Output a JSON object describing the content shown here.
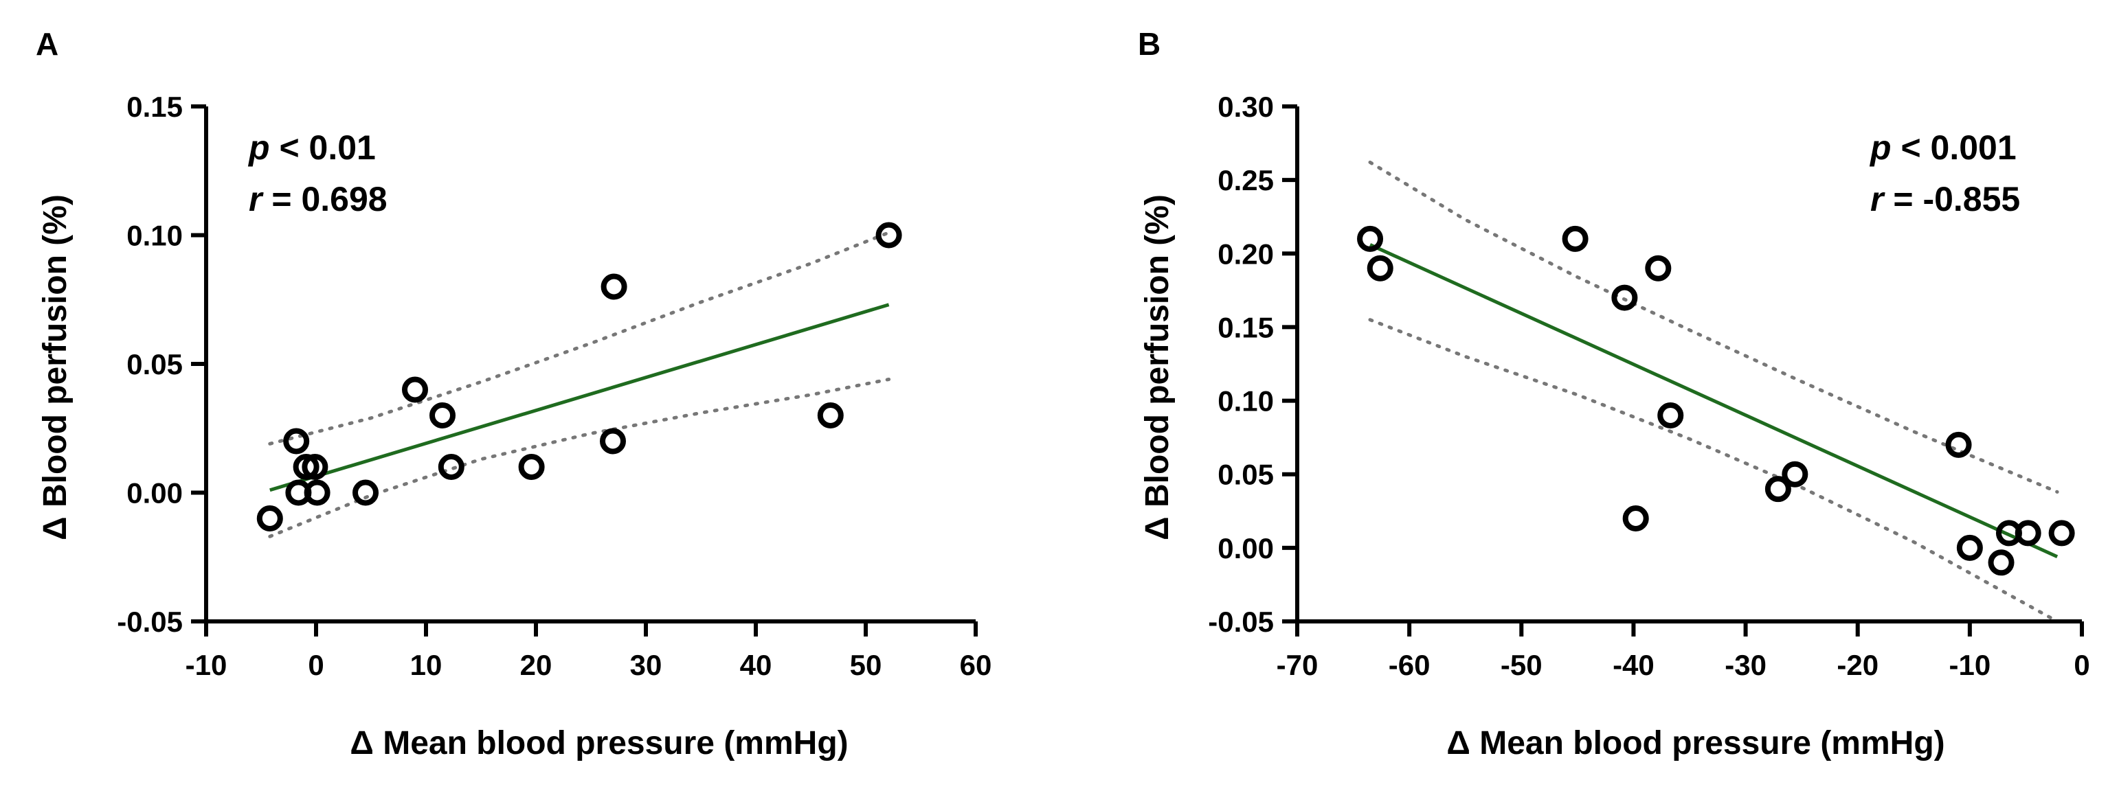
{
  "chart_data": [
    {
      "type": "scatter",
      "panel": "A",
      "xlabel": "Δ Mean blood pressure (mmHg)",
      "ylabel": "Δ Blood perfusion (%)",
      "xlim": [
        -10,
        60
      ],
      "ylim": [
        -0.05,
        0.15
      ],
      "xticks": [
        -10,
        0,
        10,
        20,
        30,
        40,
        50,
        60
      ],
      "yticks": [
        -0.05,
        0.0,
        0.05,
        0.1,
        0.15
      ],
      "xtick_labels": [
        "-10",
        "0",
        "10",
        "20",
        "30",
        "40",
        "50",
        "60"
      ],
      "ytick_labels": [
        "-0.05",
        "0.00",
        "0.05",
        "0.10",
        "0.15"
      ],
      "stats": {
        "p_symbol": "p",
        "p_text": " < 0.01",
        "r_symbol": "r",
        "r_text": " = 0.698"
      },
      "points": [
        {
          "x": -4.2,
          "y": -0.01
        },
        {
          "x": -1.8,
          "y": 0.02
        },
        {
          "x": -1.6,
          "y": 0.0
        },
        {
          "x": -0.9,
          "y": 0.01
        },
        {
          "x": -0.1,
          "y": 0.01
        },
        {
          "x": 0.1,
          "y": 0.0
        },
        {
          "x": 4.5,
          "y": 0.0
        },
        {
          "x": 9.0,
          "y": 0.04
        },
        {
          "x": 11.5,
          "y": 0.03
        },
        {
          "x": 12.3,
          "y": 0.01
        },
        {
          "x": 19.6,
          "y": 0.01
        },
        {
          "x": 27.1,
          "y": 0.08
        },
        {
          "x": 27.0,
          "y": 0.02
        },
        {
          "x": 46.8,
          "y": 0.03
        },
        {
          "x": 52.1,
          "y": 0.1
        }
      ],
      "fit_line": [
        {
          "x": -4.2,
          "y": 0.001
        },
        {
          "x": 52.1,
          "y": 0.073
        }
      ],
      "ci_upper": [
        {
          "x": -4.2,
          "y": 0.019
        },
        {
          "x": 5,
          "y": 0.029
        },
        {
          "x": 15,
          "y": 0.043
        },
        {
          "x": 25,
          "y": 0.058
        },
        {
          "x": 35,
          "y": 0.074
        },
        {
          "x": 45,
          "y": 0.089
        },
        {
          "x": 52.1,
          "y": 0.101
        }
      ],
      "ci_lower": [
        {
          "x": -4.2,
          "y": -0.017
        },
        {
          "x": 5,
          "y": -0.001
        },
        {
          "x": 15,
          "y": 0.013
        },
        {
          "x": 25,
          "y": 0.023
        },
        {
          "x": 35,
          "y": 0.031
        },
        {
          "x": 45,
          "y": 0.038
        },
        {
          "x": 52.1,
          "y": 0.044
        }
      ]
    },
    {
      "type": "scatter",
      "panel": "B",
      "xlabel": "Δ Mean blood pressure (mmHg)",
      "ylabel": "Δ Blood perfusion (%)",
      "xlim": [
        -70,
        0
      ],
      "ylim": [
        -0.05,
        0.3
      ],
      "xticks": [
        -70,
        -60,
        -50,
        -40,
        -30,
        -20,
        -10,
        0
      ],
      "yticks": [
        -0.05,
        0.0,
        0.05,
        0.1,
        0.15,
        0.2,
        0.25,
        0.3
      ],
      "xtick_labels": [
        "-70",
        "-60",
        "-50",
        "-40",
        "-30",
        "-20",
        "-10",
        "0"
      ],
      "ytick_labels": [
        "-0.05",
        "0.00",
        "0.05",
        "0.10",
        "0.15",
        "0.20",
        "0.25",
        "0.30"
      ],
      "stats": {
        "p_symbol": "p",
        "p_text": " < 0.001",
        "r_symbol": "r",
        "r_text": " = -0.855"
      },
      "points": [
        {
          "x": -63.5,
          "y": 0.21
        },
        {
          "x": -62.6,
          "y": 0.19
        },
        {
          "x": -45.2,
          "y": 0.21
        },
        {
          "x": -40.8,
          "y": 0.17
        },
        {
          "x": -37.8,
          "y": 0.19
        },
        {
          "x": -36.7,
          "y": 0.09
        },
        {
          "x": -39.8,
          "y": 0.02
        },
        {
          "x": -27.1,
          "y": 0.04
        },
        {
          "x": -25.6,
          "y": 0.05
        },
        {
          "x": -11.0,
          "y": 0.07
        },
        {
          "x": -10.0,
          "y": 0.0
        },
        {
          "x": -7.2,
          "y": -0.01
        },
        {
          "x": -6.5,
          "y": 0.01
        },
        {
          "x": -4.8,
          "y": 0.01
        },
        {
          "x": -1.8,
          "y": 0.01
        }
      ],
      "fit_line": [
        {
          "x": -63.5,
          "y": 0.206
        },
        {
          "x": -2.2,
          "y": -0.006
        }
      ],
      "ci_upper": [
        {
          "x": -63.5,
          "y": 0.262
        },
        {
          "x": -55,
          "y": 0.223
        },
        {
          "x": -45,
          "y": 0.184
        },
        {
          "x": -35,
          "y": 0.148
        },
        {
          "x": -25,
          "y": 0.113
        },
        {
          "x": -15,
          "y": 0.079
        },
        {
          "x": -2.2,
          "y": 0.038
        }
      ],
      "ci_lower": [
        {
          "x": -63.5,
          "y": 0.155
        },
        {
          "x": -55,
          "y": 0.13
        },
        {
          "x": -45,
          "y": 0.104
        },
        {
          "x": -35,
          "y": 0.074
        },
        {
          "x": -25,
          "y": 0.041
        },
        {
          "x": -15,
          "y": 0.004
        },
        {
          "x": -2.2,
          "y": -0.05
        }
      ]
    }
  ]
}
